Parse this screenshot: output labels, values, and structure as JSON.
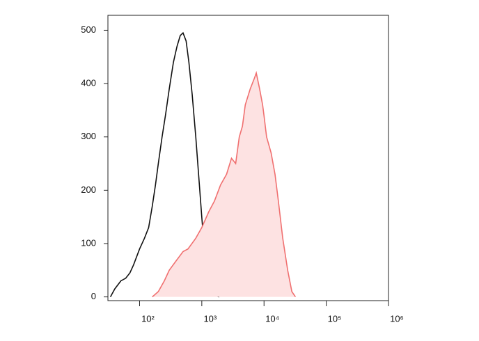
{
  "chart_data": {
    "type": "line",
    "xscale": "log",
    "xlim": [
      31,
      1000000
    ],
    "ylim": [
      -7,
      528
    ],
    "xticks": [
      {
        "value": 100,
        "label": "10²"
      },
      {
        "value": 1000,
        "label": "10³"
      },
      {
        "value": 10000,
        "label": "10⁴"
      },
      {
        "value": 100000,
        "label": "10⁵"
      },
      {
        "value": 1000000,
        "label": "10⁶"
      }
    ],
    "yticks": [
      0,
      100,
      200,
      300,
      400,
      500
    ],
    "series": [
      {
        "color": "#111111",
        "fill": false,
        "x": [
          34,
          40,
          50,
          60,
          70,
          80,
          100,
          120,
          140,
          160,
          180,
          200,
          230,
          260,
          300,
          350,
          400,
          450,
          500,
          560,
          620,
          700,
          800,
          900,
          1000,
          1100,
          1250,
          1400,
          1600,
          1900
        ],
        "values": [
          0,
          15,
          30,
          35,
          45,
          60,
          90,
          110,
          130,
          170,
          210,
          250,
          300,
          340,
          390,
          440,
          470,
          490,
          495,
          480,
          440,
          380,
          300,
          220,
          150,
          90,
          40,
          15,
          3,
          0
        ]
      },
      {
        "color": "#f07070",
        "fill": "#fde2e2",
        "x": [
          160,
          200,
          250,
          300,
          400,
          500,
          600,
          800,
          1000,
          1300,
          1600,
          2000,
          2500,
          3000,
          3500,
          4000,
          4500,
          5000,
          6000,
          7000,
          7500,
          8500,
          9500,
          10000,
          11000,
          13000,
          15000,
          17000,
          20000,
          24000,
          28000,
          32000
        ],
        "values": [
          0,
          10,
          30,
          50,
          70,
          85,
          90,
          110,
          130,
          160,
          180,
          210,
          230,
          260,
          250,
          300,
          320,
          360,
          390,
          410,
          420,
          390,
          360,
          340,
          300,
          270,
          230,
          180,
          110,
          50,
          10,
          0
        ]
      }
    ]
  }
}
